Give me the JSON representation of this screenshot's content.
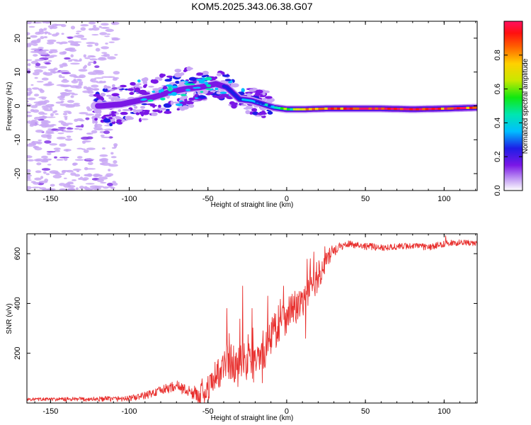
{
  "title": "KOM5.2025.343.06.38.G07",
  "colors": {
    "snr_line": "#e8302e",
    "spectrogram_low": "#c9a8f5",
    "spectrogram_mid": "#7a17e6",
    "spectrogram_peak": "#ff2020"
  },
  "chart_data": [
    {
      "type": "heatmap",
      "name": "spectrogram",
      "xlabel": "Height of straight line (km)",
      "ylabel": "Frequency (Hz)",
      "xlim": [
        -165,
        121
      ],
      "ylim": [
        -25,
        25
      ],
      "xticks": [
        -150,
        -100,
        -50,
        0,
        50,
        100
      ],
      "yticks": [
        -20,
        -10,
        0,
        10,
        20
      ],
      "xtick_labels": [
        "-150",
        "-100",
        "-50",
        "0",
        "50",
        "100"
      ],
      "ytick_labels": [
        "-20",
        "-10",
        "0",
        "10",
        "20"
      ],
      "ridge": {
        "x": [
          -118,
          -105,
          -95,
          -85,
          -75,
          -65,
          -55,
          -45,
          -38,
          -30,
          -22,
          -15,
          -8,
          0,
          10,
          25,
          40,
          60,
          80,
          100,
          121
        ],
        "y": [
          0,
          0.5,
          1.5,
          2.5,
          4,
          5,
          5.5,
          6.5,
          5.5,
          2,
          1.5,
          0.5,
          -0.5,
          -1,
          -1,
          -0.8,
          -0.8,
          -0.8,
          -1,
          -0.8,
          -0.5
        ],
        "amplitude": [
          0.2,
          0.25,
          0.3,
          0.35,
          0.35,
          0.4,
          0.4,
          0.35,
          0.3,
          0.3,
          0.35,
          0.4,
          0.5,
          0.6,
          0.8,
          0.9,
          0.95,
          1.0,
          1.0,
          0.95,
          0.9
        ]
      },
      "noise_region_x": [
        -165,
        -118
      ]
    },
    {
      "type": "colorbar",
      "label": "Normalized spectral amplitude",
      "range": [
        0,
        1
      ],
      "ticks": [
        0.0,
        0.2,
        0.4,
        0.6,
        0.8
      ],
      "tick_labels": [
        "0.0",
        "0.2",
        "0.4",
        "0.6",
        "0.8"
      ]
    },
    {
      "type": "line",
      "name": "snr",
      "xlabel": "Height of straight line (km)",
      "ylabel": "SNR (v/v)",
      "xlim": [
        -165,
        121
      ],
      "ylim": [
        0,
        680
      ],
      "xticks": [
        -150,
        -100,
        -50,
        0,
        50,
        100
      ],
      "yticks": [
        200,
        400,
        600
      ],
      "xtick_labels": [
        "-150",
        "-100",
        "-50",
        "0",
        "50",
        "100"
      ],
      "ytick_labels": [
        "200",
        "400",
        "600"
      ],
      "trend": {
        "x": [
          -165,
          -130,
          -100,
          -90,
          -80,
          -70,
          -60,
          -52,
          -48,
          -44,
          -40,
          -35,
          -30,
          -25,
          -20,
          -15,
          -10,
          -5,
          0,
          5,
          10,
          15,
          20,
          25,
          30,
          35,
          40,
          50,
          60,
          70,
          80,
          90,
          100,
          110,
          121
        ],
        "y": [
          15,
          15,
          18,
          30,
          50,
          70,
          40,
          35,
          75,
          120,
          150,
          165,
          150,
          170,
          170,
          210,
          270,
          320,
          360,
          380,
          410,
          450,
          500,
          570,
          615,
          630,
          640,
          630,
          625,
          628,
          632,
          625,
          640,
          645,
          640
        ]
      },
      "noise": {
        "x": [
          -165,
          -100,
          -60,
          -50,
          -20,
          0,
          20,
          35,
          121
        ],
        "amplitude": [
          6,
          12,
          25,
          60,
          90,
          80,
          50,
          15,
          12
        ]
      },
      "spikes": [
        {
          "x": -38,
          "y": 380
        },
        {
          "x": -28,
          "y": 470
        },
        {
          "x": -22,
          "y": 380
        },
        {
          "x": -12,
          "y": 430
        },
        {
          "x": -2,
          "y": 470
        },
        {
          "x": 12,
          "y": 520
        },
        {
          "x": 12,
          "y": 260
        },
        {
          "x": 101,
          "y": 672
        }
      ]
    }
  ]
}
